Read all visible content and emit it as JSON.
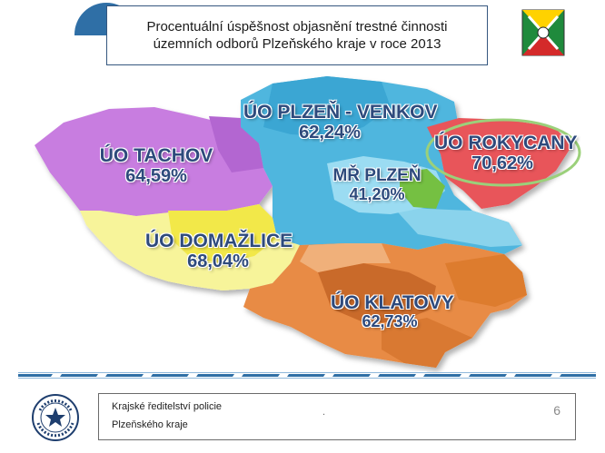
{
  "title": {
    "line1": "Procentuální úspěšnost objasnění trestné činnosti",
    "line2": "územních odborů Plzeňského kraje v roce 2013"
  },
  "regions": [
    {
      "name": "ÚO PLZEŇ - VENKOV",
      "value": "62,24%"
    },
    {
      "name": "ÚO TACHOV",
      "value": "64,59%"
    },
    {
      "name": "ÚO ROKYCANY",
      "value": "70,62%"
    },
    {
      "name": "MŘ PLZEŇ",
      "value": "41,20%"
    },
    {
      "name": "ÚO DOMAŽLICE",
      "value": "68,04%"
    },
    {
      "name": "ÚO KLATOVY",
      "value": "62,73%"
    }
  ],
  "footer": {
    "line1": "Krajské ředitelství policie",
    "line2": "Plzeňského kraje",
    "dot": ".",
    "page": "6"
  },
  "logo_text": "POLICIE ČESKÉ REPUBLIKY",
  "colors": {
    "accent": "#2f6fa6",
    "tachov": "#c87de0",
    "plzen_venkov": "#4fb6de",
    "rokycany": "#e8545a",
    "mr_plzen": "#74c043",
    "domazlice": "#f2f06a",
    "klatovy": "#e88b45",
    "label_text": "#2e4a7c"
  }
}
